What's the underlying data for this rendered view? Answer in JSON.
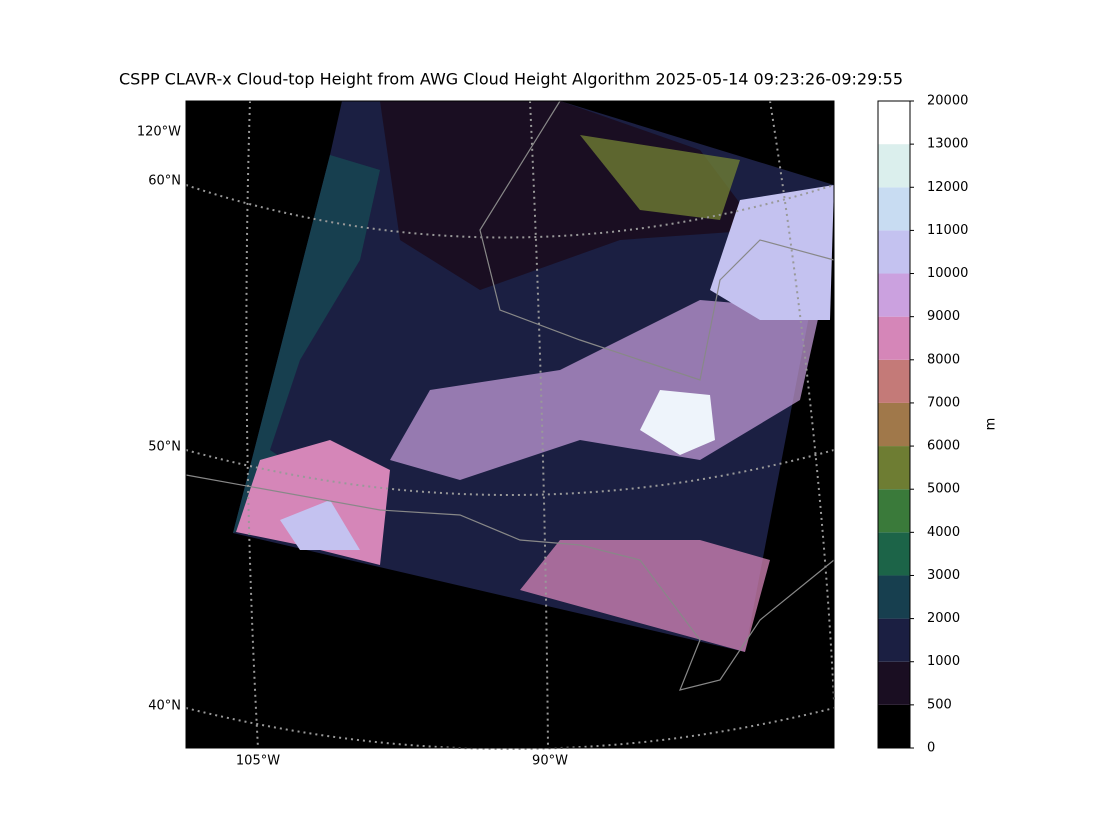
{
  "title": "CSPP CLAVR-x Cloud-top Height from AWG Cloud Height Algorithm 2025-05-14 09:23:26-09:29:55",
  "map": {
    "lat_labels": [
      "60°N",
      "50°N",
      "40°N"
    ],
    "lon_labels": [
      "120°W",
      "105°W",
      "90°W"
    ]
  },
  "colorbar": {
    "label": "m",
    "boundaries": [
      0,
      500,
      1000,
      2000,
      3000,
      4000,
      5000,
      6000,
      7000,
      8000,
      9000,
      10000,
      11000,
      12000,
      13000,
      20000
    ],
    "colors": [
      "#000000",
      "#1a0e22",
      "#1b1f42",
      "#173f4f",
      "#1c6448",
      "#3a7a3a",
      "#6e7d33",
      "#a0784a",
      "#c47a78",
      "#d586b8",
      "#cba1df",
      "#c4c2f0",
      "#c8dcf2",
      "#dbefed",
      "#ffffff"
    ]
  }
}
